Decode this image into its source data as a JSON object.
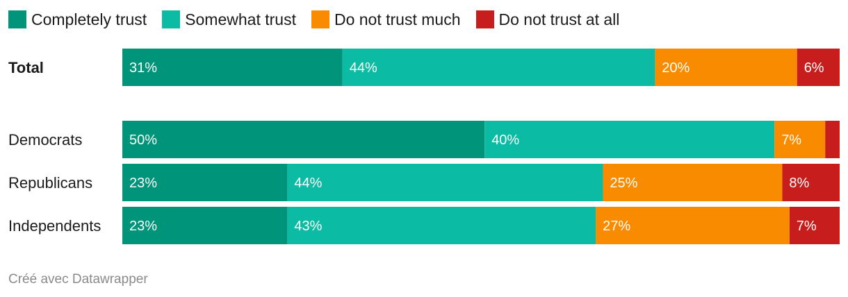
{
  "chart_data": {
    "type": "bar",
    "orientation": "horizontal",
    "stacked": true,
    "categories": [
      "Total",
      "Democrats",
      "Republicans",
      "Independents"
    ],
    "series": [
      {
        "name": "Completely trust",
        "color": "#00957a",
        "values": [
          31,
          50,
          23,
          23
        ]
      },
      {
        "name": "Somewhat trust",
        "color": "#0cbba3",
        "values": [
          44,
          40,
          44,
          43
        ]
      },
      {
        "name": "Do not trust much",
        "color": "#f98b00",
        "values": [
          20,
          7,
          25,
          27
        ]
      },
      {
        "name": "Do not trust at all",
        "color": "#c71e1d",
        "values": [
          6,
          2,
          8,
          7
        ]
      }
    ],
    "value_labels": [
      [
        "31%",
        "44%",
        "20%",
        "6%"
      ],
      [
        "50%",
        "40%",
        "7%",
        ""
      ],
      [
        "23%",
        "44%",
        "25%",
        "8%"
      ],
      [
        "23%",
        "43%",
        "27%",
        "7%"
      ]
    ],
    "title": "",
    "xlabel": "",
    "ylabel": "",
    "legend_position": "top-left",
    "bold_categories": [
      "Total"
    ]
  },
  "footer": {
    "credit": "Créé avec Datawrapper"
  }
}
